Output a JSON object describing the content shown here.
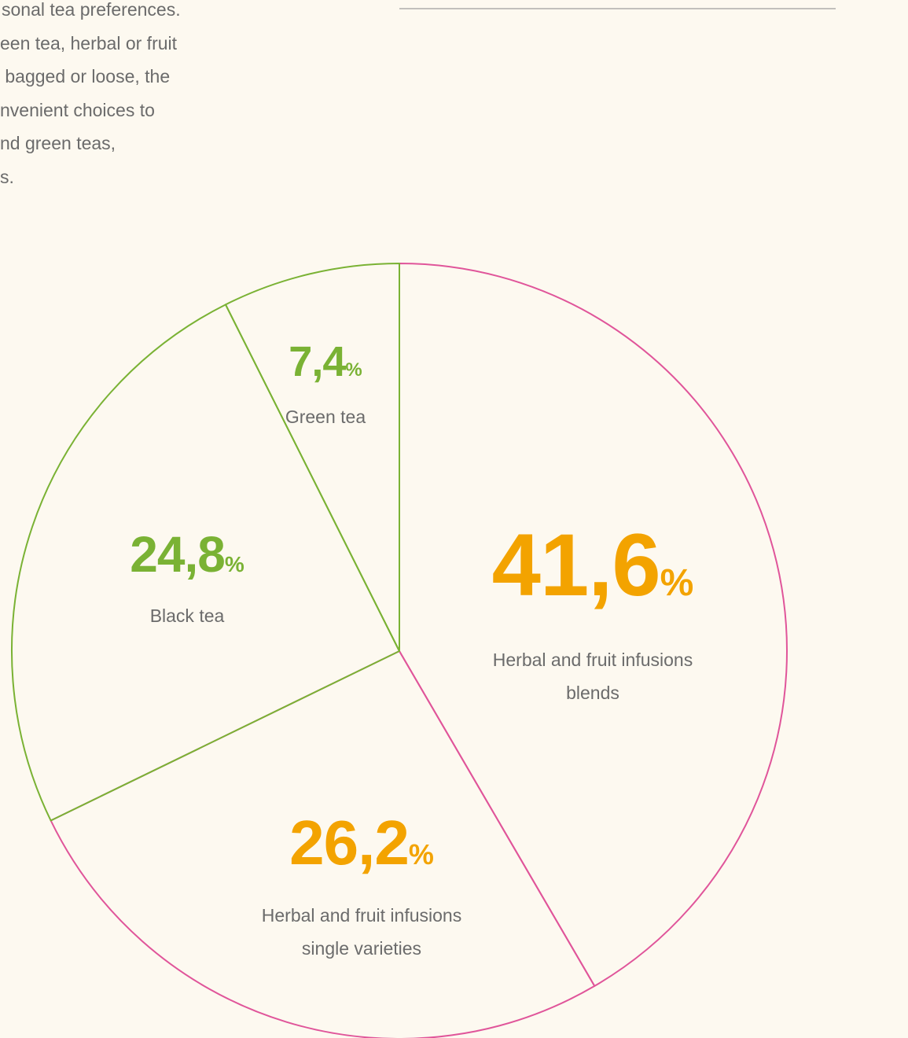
{
  "intro_lines": [
    "sonal tea preferences.",
    "een tea, herbal or fruit",
    " bagged or loose, the",
    "nvenient choices to",
    "nd green teas,",
    "s."
  ],
  "chart_data": {
    "type": "pie",
    "categories": [
      "Herbal and fruit infusions blends",
      "Herbal and fruit infusions single varieties",
      "Black tea",
      "Green tea"
    ],
    "values": [
      41.6,
      26.2,
      24.8,
      7.4
    ],
    "value_labels": [
      "41,6",
      "26,2",
      "24,8",
      "7,4"
    ],
    "value_suffix": "%",
    "colors": [
      "#e0559a",
      "#e0559a",
      "#7ab234",
      "#7ab234"
    ],
    "label_colors": [
      "#f3a300",
      "#f3a300",
      "#7ab234",
      "#7ab234"
    ]
  }
}
